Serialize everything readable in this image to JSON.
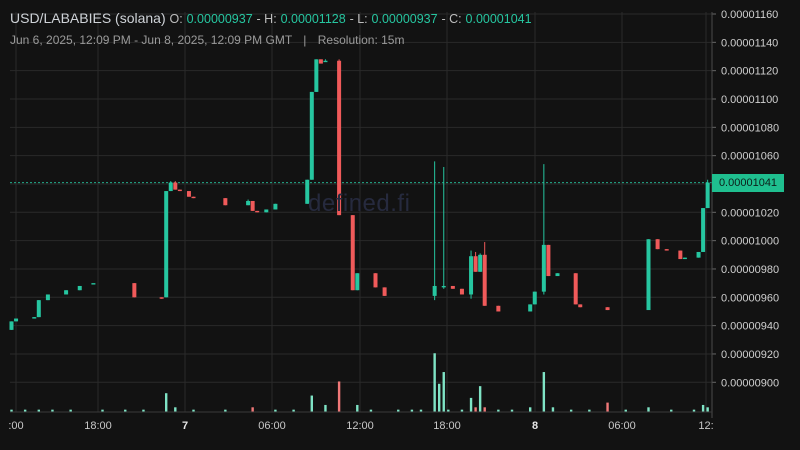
{
  "header": {
    "symbol": "USD/LABABIES (solana)",
    "o_label": "O:",
    "o_value": "0.00000937",
    "h_label": "- H:",
    "h_value": "0.00001128",
    "l_label": "- L:",
    "l_value": "0.00000937",
    "c_label": "- C:",
    "c_value": "0.00001041",
    "date_range": "Jun 6, 2025, 12:09 PM - Jun 8, 2025, 12:09 PM GMT",
    "separator": "|",
    "resolution": "Resolution: 15m"
  },
  "watermark": "defined.fi",
  "last_price_label": "0.00001041",
  "colors": {
    "up": "#26c6a0",
    "down": "#f05a5a",
    "volume_up": "#7fe3c5",
    "volume_down": "#f07878",
    "background": "#121212",
    "grid": "#2a2a2a"
  },
  "chart_data": {
    "type": "candlestick",
    "y_ticks": [
      "0.00001160",
      "0.00001140",
      "0.00001120",
      "0.00001100",
      "0.00001080",
      "0.00001060",
      "0.00001040",
      "0.00001020",
      "0.00001000",
      "0.00000980",
      "0.00000960",
      "0.00000940",
      "0.00000920",
      "0.00000900"
    ],
    "ylim": [
      8.82e-06,
      1.16e-05
    ],
    "x_ticks": [
      ":00",
      "18:00",
      "7",
      "06:00",
      "12:00",
      "18:00",
      "8",
      "06:00",
      "12:"
    ],
    "bold_x_ticks": [
      "7",
      "8"
    ],
    "last_price": 1.041e-05,
    "candles": [
      {
        "t": 0,
        "o": 9.37e-06,
        "h": 9.43e-06,
        "l": 9.37e-06,
        "c": 9.43e-06
      },
      {
        "t": 1,
        "o": 9.43e-06,
        "h": 9.45e-06,
        "l": 9.43e-06,
        "c": 9.45e-06
      },
      {
        "t": 5,
        "o": 9.45e-06,
        "h": 9.46e-06,
        "l": 9.45e-06,
        "c": 9.46e-06
      },
      {
        "t": 6,
        "o": 9.46e-06,
        "h": 9.58e-06,
        "l": 9.46e-06,
        "c": 9.58e-06
      },
      {
        "t": 8,
        "o": 9.58e-06,
        "h": 9.62e-06,
        "l": 9.58e-06,
        "c": 9.62e-06
      },
      {
        "t": 12,
        "o": 9.62e-06,
        "h": 9.65e-06,
        "l": 9.62e-06,
        "c": 9.65e-06
      },
      {
        "t": 15,
        "o": 9.65e-06,
        "h": 9.68e-06,
        "l": 9.65e-06,
        "c": 9.68e-06
      },
      {
        "t": 18,
        "o": 9.7e-06,
        "h": 9.7e-06,
        "l": 9.7e-06,
        "c": 9.7e-06
      },
      {
        "t": 27,
        "o": 9.7e-06,
        "h": 9.7e-06,
        "l": 9.6e-06,
        "c": 9.6e-06
      },
      {
        "t": 33,
        "o": 9.6e-06,
        "h": 9.6e-06,
        "l": 9.59e-06,
        "c": 9.59e-06
      },
      {
        "t": 34,
        "o": 9.6e-06,
        "h": 1.035e-05,
        "l": 9.6e-06,
        "c": 1.035e-05
      },
      {
        "t": 35,
        "o": 1.035e-05,
        "h": 1.042e-05,
        "l": 1.035e-05,
        "c": 1.041e-05
      },
      {
        "t": 36,
        "o": 1.041e-05,
        "h": 1.042e-05,
        "l": 1.036e-05,
        "c": 1.036e-05
      },
      {
        "t": 37,
        "o": 1.036e-05,
        "h": 1.036e-05,
        "l": 1.035e-05,
        "c": 1.035e-05
      },
      {
        "t": 39,
        "o": 1.035e-05,
        "h": 1.035e-05,
        "l": 1.031e-05,
        "c": 1.031e-05
      },
      {
        "t": 40,
        "o": 1.031e-05,
        "h": 1.031e-05,
        "l": 1.03e-05,
        "c": 1.03e-05
      },
      {
        "t": 47,
        "o": 1.03e-05,
        "h": 1.03e-05,
        "l": 1.025e-05,
        "c": 1.025e-05
      },
      {
        "t": 52,
        "o": 1.025e-05,
        "h": 1.029e-05,
        "l": 1.025e-05,
        "c": 1.028e-05
      },
      {
        "t": 53,
        "o": 1.028e-05,
        "h": 1.028e-05,
        "l": 1.021e-05,
        "c": 1.021e-05
      },
      {
        "t": 54,
        "o": 1.021e-05,
        "h": 1.021e-05,
        "l": 1.02e-05,
        "c": 1.02e-05
      },
      {
        "t": 56,
        "o": 1.02e-05,
        "h": 1.022e-05,
        "l": 1.02e-05,
        "c": 1.022e-05
      },
      {
        "t": 58,
        "o": 1.022e-05,
        "h": 1.026e-05,
        "l": 1.022e-05,
        "c": 1.026e-05
      },
      {
        "t": 65,
        "o": 1.026e-05,
        "h": 1.043e-05,
        "l": 1.026e-05,
        "c": 1.043e-05
      },
      {
        "t": 66,
        "o": 1.043e-05,
        "h": 1.105e-05,
        "l": 1.043e-05,
        "c": 1.105e-05
      },
      {
        "t": 67,
        "o": 1.105e-05,
        "h": 1.128e-05,
        "l": 1.105e-05,
        "c": 1.128e-05
      },
      {
        "t": 68,
        "o": 1.128e-05,
        "h": 1.128e-05,
        "l": 1.125e-05,
        "c": 1.125e-05
      },
      {
        "t": 69,
        "o": 1.127e-05,
        "h": 1.128e-05,
        "l": 1.127e-05,
        "c": 1.127e-05
      },
      {
        "t": 72,
        "o": 1.127e-05,
        "h": 1.128e-05,
        "l": 1.018e-05,
        "c": 1.018e-05
      },
      {
        "t": 75,
        "o": 1.018e-05,
        "h": 1.018e-05,
        "l": 9.65e-06,
        "c": 9.65e-06
      },
      {
        "t": 76,
        "o": 9.65e-06,
        "h": 9.77e-06,
        "l": 9.65e-06,
        "c": 9.77e-06
      },
      {
        "t": 80,
        "o": 9.77e-06,
        "h": 9.77e-06,
        "l": 9.67e-06,
        "c": 9.67e-06
      },
      {
        "t": 82,
        "o": 9.67e-06,
        "h": 9.67e-06,
        "l": 9.61e-06,
        "c": 9.61e-06
      },
      {
        "t": 93,
        "o": 9.61e-06,
        "h": 1.056e-05,
        "l": 9.58e-06,
        "c": 9.68e-06
      },
      {
        "t": 95,
        "o": 9.68e-06,
        "h": 1.052e-05,
        "l": 9.66e-06,
        "c": 9.68e-06
      },
      {
        "t": 97,
        "o": 9.68e-06,
        "h": 9.68e-06,
        "l": 9.66e-06,
        "c": 9.66e-06
      },
      {
        "t": 99,
        "o": 9.66e-06,
        "h": 9.66e-06,
        "l": 9.62e-06,
        "c": 9.62e-06
      },
      {
        "t": 101,
        "o": 9.62e-06,
        "h": 9.93e-06,
        "l": 9.59e-06,
        "c": 9.89e-06
      },
      {
        "t": 102,
        "o": 9.89e-06,
        "h": 9.92e-06,
        "l": 9.78e-06,
        "c": 9.78e-06
      },
      {
        "t": 103,
        "o": 9.78e-06,
        "h": 9.91e-06,
        "l": 9.78e-06,
        "c": 9.9e-06
      },
      {
        "t": 104,
        "o": 9.9e-06,
        "h": 9.99e-06,
        "l": 9.54e-06,
        "c": 9.54e-06
      },
      {
        "t": 107,
        "o": 9.54e-06,
        "h": 9.54e-06,
        "l": 9.5e-06,
        "c": 9.5e-06
      },
      {
        "t": 114,
        "o": 9.5e-06,
        "h": 9.55e-06,
        "l": 9.5e-06,
        "c": 9.55e-06
      },
      {
        "t": 115,
        "o": 9.55e-06,
        "h": 9.64e-06,
        "l": 9.55e-06,
        "c": 9.64e-06
      },
      {
        "t": 117,
        "o": 9.64e-06,
        "h": 1.054e-05,
        "l": 9.62e-06,
        "c": 9.97e-06
      },
      {
        "t": 118,
        "o": 9.97e-06,
        "h": 9.97e-06,
        "l": 9.75e-06,
        "c": 9.75e-06
      },
      {
        "t": 120,
        "o": 9.75e-06,
        "h": 9.77e-06,
        "l": 9.75e-06,
        "c": 9.77e-06
      },
      {
        "t": 124,
        "o": 9.77e-06,
        "h": 9.77e-06,
        "l": 9.55e-06,
        "c": 9.55e-06
      },
      {
        "t": 125,
        "o": 9.55e-06,
        "h": 9.55e-06,
        "l": 9.53e-06,
        "c": 9.53e-06
      },
      {
        "t": 131,
        "o": 9.53e-06,
        "h": 9.53e-06,
        "l": 9.51e-06,
        "c": 9.51e-06
      },
      {
        "t": 140,
        "o": 9.51e-06,
        "h": 1.001e-05,
        "l": 9.51e-06,
        "c": 1.001e-05
      },
      {
        "t": 142,
        "o": 1.001e-05,
        "h": 1.001e-05,
        "l": 9.94e-06,
        "c": 9.94e-06
      },
      {
        "t": 144,
        "o": 9.94e-06,
        "h": 9.94e-06,
        "l": 9.93e-06,
        "c": 9.93e-06
      },
      {
        "t": 147,
        "o": 9.93e-06,
        "h": 9.93e-06,
        "l": 9.87e-06,
        "c": 9.87e-06
      },
      {
        "t": 148,
        "o": 9.87e-06,
        "h": 9.88e-06,
        "l": 9.87e-06,
        "c": 9.88e-06
      },
      {
        "t": 151,
        "o": 9.88e-06,
        "h": 9.92e-06,
        "l": 9.88e-06,
        "c": 9.92e-06
      },
      {
        "t": 152,
        "o": 9.92e-06,
        "h": 1.023e-05,
        "l": 9.92e-06,
        "c": 1.023e-05
      },
      {
        "t": 153,
        "o": 1.023e-05,
        "h": 1.043e-05,
        "l": 1.023e-05,
        "c": 1.041e-05
      }
    ],
    "volume": [
      {
        "t": 0,
        "v": 1,
        "up": true
      },
      {
        "t": 3,
        "v": 1,
        "up": true
      },
      {
        "t": 6,
        "v": 1,
        "up": true
      },
      {
        "t": 9,
        "v": 1,
        "up": true
      },
      {
        "t": 13,
        "v": 1,
        "up": true
      },
      {
        "t": 20,
        "v": 1,
        "up": true
      },
      {
        "t": 25,
        "v": 1,
        "up": true
      },
      {
        "t": 29,
        "v": 1,
        "up": true
      },
      {
        "t": 34,
        "v": 8,
        "up": true
      },
      {
        "t": 36,
        "v": 2,
        "up": true
      },
      {
        "t": 40,
        "v": 1,
        "up": true
      },
      {
        "t": 47,
        "v": 1,
        "up": true
      },
      {
        "t": 53,
        "v": 2,
        "up": false
      },
      {
        "t": 58,
        "v": 1,
        "up": true
      },
      {
        "t": 62,
        "v": 1,
        "up": true
      },
      {
        "t": 66,
        "v": 7,
        "up": true
      },
      {
        "t": 69,
        "v": 3,
        "up": true
      },
      {
        "t": 72,
        "v": 13,
        "up": false
      },
      {
        "t": 76,
        "v": 3,
        "up": true
      },
      {
        "t": 79,
        "v": 1,
        "up": true
      },
      {
        "t": 85,
        "v": 1,
        "up": true
      },
      {
        "t": 88,
        "v": 1,
        "up": true
      },
      {
        "t": 90,
        "v": 1,
        "up": true
      },
      {
        "t": 93,
        "v": 25,
        "up": true
      },
      {
        "t": 94,
        "v": 12,
        "up": true
      },
      {
        "t": 95,
        "v": 17,
        "up": true
      },
      {
        "t": 96,
        "v": 1,
        "up": true
      },
      {
        "t": 99,
        "v": 1,
        "up": true
      },
      {
        "t": 101,
        "v": 6,
        "up": true
      },
      {
        "t": 102,
        "v": 2,
        "up": false
      },
      {
        "t": 103,
        "v": 11,
        "up": true
      },
      {
        "t": 104,
        "v": 2,
        "up": false
      },
      {
        "t": 107,
        "v": 1,
        "up": true
      },
      {
        "t": 110,
        "v": 1,
        "up": true
      },
      {
        "t": 114,
        "v": 2,
        "up": true
      },
      {
        "t": 117,
        "v": 17,
        "up": true
      },
      {
        "t": 119,
        "v": 2,
        "up": true
      },
      {
        "t": 123,
        "v": 1,
        "up": true
      },
      {
        "t": 127,
        "v": 1,
        "up": true
      },
      {
        "t": 131,
        "v": 4,
        "up": false
      },
      {
        "t": 135,
        "v": 1,
        "up": true
      },
      {
        "t": 140,
        "v": 2,
        "up": true
      },
      {
        "t": 145,
        "v": 1,
        "up": true
      },
      {
        "t": 150,
        "v": 1,
        "up": true
      },
      {
        "t": 152,
        "v": 3,
        "up": true
      },
      {
        "t": 153,
        "v": 2,
        "up": true
      }
    ]
  }
}
